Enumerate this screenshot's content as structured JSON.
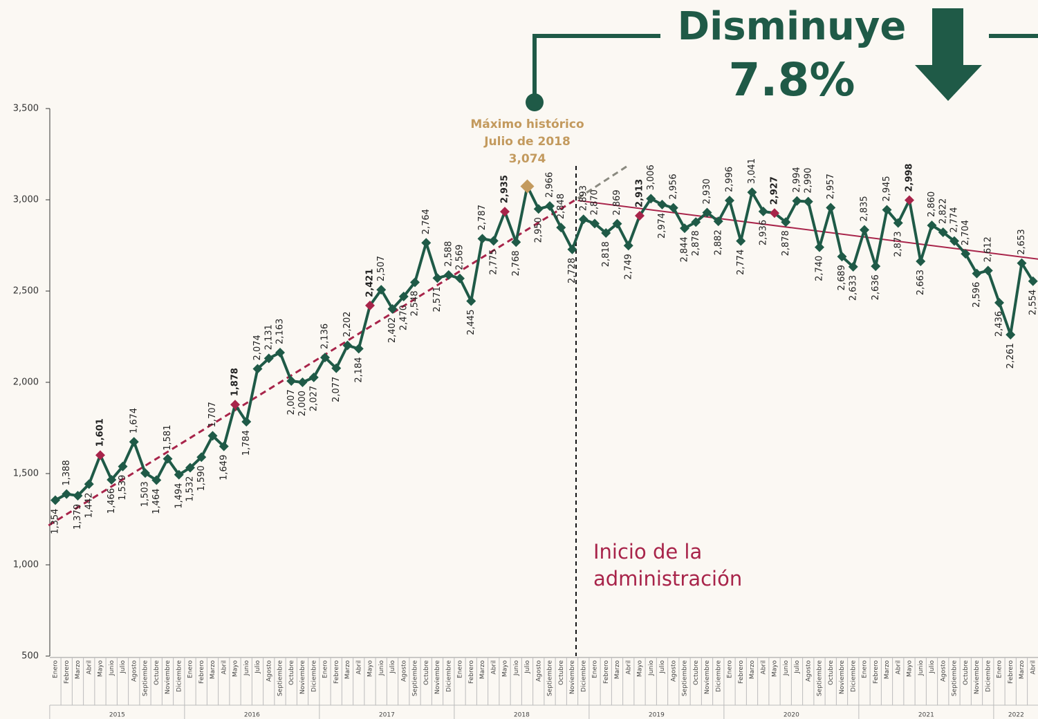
{
  "header": {
    "headline": "Disminuye",
    "change": "7.8%"
  },
  "chart_data": {
    "type": "line",
    "categories": [
      "Enero",
      "Febrero",
      "Marzo",
      "Abril",
      "Mayo",
      "Junio",
      "Julio",
      "Agosto",
      "Septiembre",
      "Octubre",
      "Noviembre",
      "Diciembre",
      "Enero",
      "Febrero",
      "Marzo",
      "Abril",
      "Mayo",
      "Junio",
      "Julio",
      "Agosto",
      "Septiembre",
      "Octubre",
      "Noviembre",
      "Diciembre",
      "Enero",
      "Febrero",
      "Marzo",
      "Abril",
      "Mayo",
      "Junio",
      "Julio",
      "Agosto",
      "Septiembre",
      "Octubre",
      "Noviembre",
      "Diciembre",
      "Enero",
      "Febrero",
      "Marzo",
      "Abril",
      "Mayo",
      "Junio",
      "Julio",
      "Agosto",
      "Septiembre",
      "Octubre",
      "Noviembre",
      "Diciembre",
      "Enero",
      "Febrero",
      "Marzo",
      "Abril",
      "Mayo",
      "Junio",
      "Julio",
      "Agosto",
      "Septiembre",
      "Octubre",
      "Noviembre",
      "Diciembre",
      "Enero",
      "Febrero",
      "Marzo",
      "Abril",
      "Mayo",
      "Junio",
      "Julio",
      "Agosto",
      "Septiembre",
      "Octubre",
      "Noviembre",
      "Diciembre",
      "Enero",
      "Febrero",
      "Marzo",
      "Abril",
      "Mayo",
      "Junio",
      "Julio",
      "Agosto",
      "Septiembre",
      "Octubre",
      "Noviembre",
      "Diciembre",
      "Enero",
      "Febrero",
      "Marzo",
      "Abril"
    ],
    "year_groups": [
      "2015",
      "2016",
      "2017",
      "2018",
      "2019",
      "2020",
      "2021",
      "2022"
    ],
    "series": [
      {
        "color": "#1f5a47",
        "highlight_category": "Mayo",
        "highlight_color": "#a8244a",
        "record_color": "#c39a5e",
        "values": [
          1354,
          1388,
          1379,
          1442,
          1601,
          1466,
          1539,
          1674,
          1503,
          1464,
          1581,
          1494,
          1532,
          1590,
          1707,
          1649,
          1878,
          1784,
          2074,
          2131,
          2163,
          2007,
          2000,
          2027,
          2136,
          2077,
          2202,
          2184,
          2421,
          2507,
          2402,
          2470,
          2548,
          2764,
          2571,
          2588,
          2569,
          2445,
          2787,
          2775,
          2935,
          2768,
          3074,
          2950,
          2966,
          2848,
          2728,
          2893,
          2870,
          2818,
          2869,
          2749,
          2913,
          3006,
          2974,
          2956,
          2844,
          2878,
          2930,
          2882,
          2996,
          2774,
          3041,
          2936,
          2927,
          2878,
          2994,
          2990,
          2740,
          2957,
          2689,
          2633,
          2835,
          2636,
          2945,
          2873,
          2998,
          2663,
          2860,
          2822,
          2774,
          2704,
          2596,
          2612,
          2436,
          2261,
          2653,
          2554
        ],
        "value_labels": [
          "1,354",
          "1,388",
          "1,379",
          "1,442",
          "1,601",
          "1,466",
          "1,539",
          "1,674",
          "1,503",
          "1,464",
          "1,581",
          "1,494",
          "1,532",
          "1,590",
          "1,707",
          "1,649",
          "1,878",
          "1,784",
          "2,074",
          "2,131",
          "2,163",
          "2,007",
          "2,000",
          "2,027",
          "2,136",
          "2,077",
          "2,202",
          "2,184",
          "2,421",
          "2,507",
          "2,402",
          "2,470",
          "2,548",
          "2,764",
          "2,571",
          "2,588",
          "2,569",
          "2,445",
          "2,787",
          "2,775",
          "2,935",
          "2,768",
          "3,074",
          "2,950",
          "2,966",
          "2,848",
          "2,728",
          "2,893",
          "2,870",
          "2,818",
          "2,869",
          "2,749",
          "2,913",
          "3,006",
          "2,974",
          "2,956",
          "2,844",
          "2,878",
          "2,930",
          "2,882",
          "2,996",
          "2,774",
          "3,041",
          "2,936",
          "2,927",
          "2,878",
          "2,994",
          "2,990",
          "2,740",
          "2,957",
          "2,689",
          "2,633",
          "2,835",
          "2,636",
          "2,945",
          "2,873",
          "2,998",
          "2,663",
          "2,860",
          "2,822",
          "2,774",
          "2,704",
          "2,596",
          "2,612",
          "2,436",
          "2,261",
          "2,653",
          "2,554"
        ]
      }
    ],
    "trend_lines": [
      {
        "color": "#a8244a",
        "dashed": true,
        "x": [
          -0.6,
          46.5
        ],
        "values": [
          1216,
          3008
        ]
      },
      {
        "color": "#8a8a80",
        "dashed": true,
        "x": [
          46.5,
          50.9
        ],
        "values": [
          3008,
          3185
        ]
      },
      {
        "color": "#a8244a",
        "dashed": false,
        "x": [
          46.5,
          87.6
        ],
        "values": [
          2996,
          2674
        ]
      }
    ],
    "ylim": [
      500,
      3500
    ],
    "yticks": [
      {
        "value": 500,
        "label": "500"
      },
      {
        "value": 1000,
        "label": "1,000"
      },
      {
        "value": 1500,
        "label": "1,500"
      },
      {
        "value": 2000,
        "label": "2,000"
      },
      {
        "value": 2500,
        "label": "2,500"
      },
      {
        "value": 3000,
        "label": "3,000"
      },
      {
        "value": 3500,
        "label": "3,500"
      }
    ],
    "record_annotation": [
      "Máximo histórico",
      "Julio de 2018"
    ],
    "administration_annotation": [
      "Inicio de la",
      "administración"
    ]
  }
}
